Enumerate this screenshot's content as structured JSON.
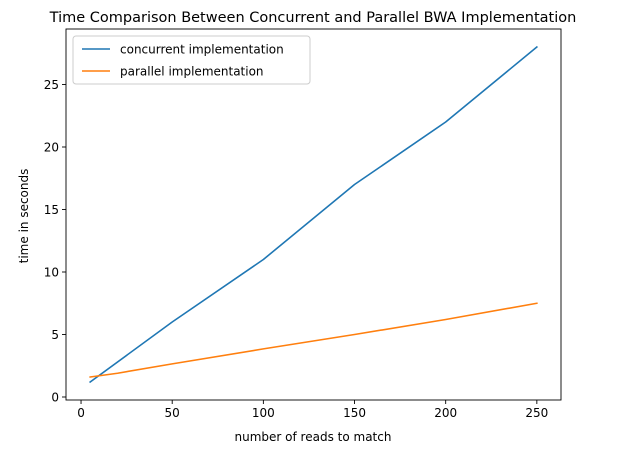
{
  "chart_data": {
    "type": "line",
    "title": "Time Comparison Between Concurrent and Parallel BWA Implementation",
    "xlabel": "number of reads to match",
    "ylabel": "time in seconds",
    "xlim": [
      -8.25,
      263.25
    ],
    "ylim": [
      -0.24,
      29.44
    ],
    "xticks": [
      0,
      50,
      100,
      150,
      200,
      250
    ],
    "yticks": [
      0,
      5,
      10,
      15,
      20,
      25
    ],
    "grid": false,
    "legend_position": "upper-left",
    "series": [
      {
        "name": "concurrent implementation",
        "color": "#1f77b4",
        "x": [
          5,
          50,
          100,
          150,
          200,
          250
        ],
        "y": [
          1.2,
          6.0,
          11.0,
          17.0,
          22.0,
          28.0
        ]
      },
      {
        "name": "parallel implementation",
        "color": "#ff7f0e",
        "x": [
          5,
          20,
          50,
          100,
          150,
          200,
          250
        ],
        "y": [
          1.6,
          1.9,
          2.65,
          3.85,
          5.0,
          6.2,
          7.5
        ]
      }
    ]
  }
}
